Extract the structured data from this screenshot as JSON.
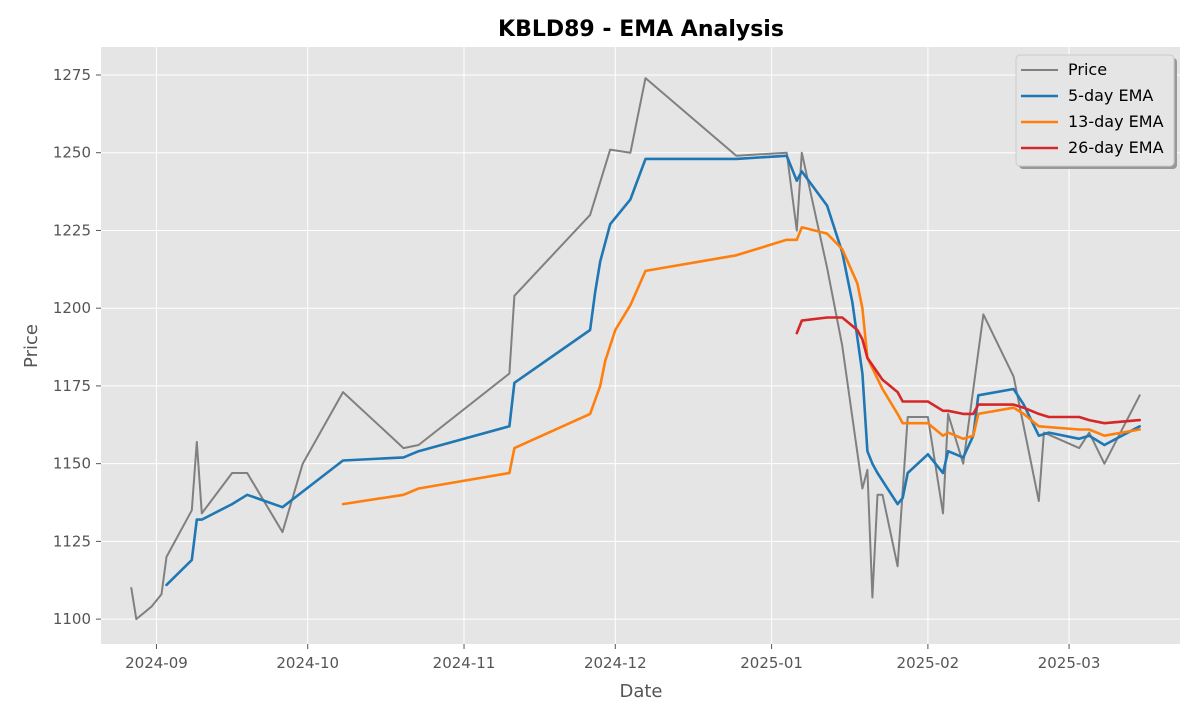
{
  "chart_data": {
    "type": "line",
    "title": "KBLD89 - EMA Analysis",
    "xlabel": "Date",
    "ylabel": "Price",
    "x_ticks": [
      {
        "date": "2024-09-01",
        "label": "2024-09"
      },
      {
        "date": "2024-10-01",
        "label": "2024-10"
      },
      {
        "date": "2024-11-01",
        "label": "2024-11"
      },
      {
        "date": "2024-12-01",
        "label": "2024-12"
      },
      {
        "date": "2025-01-01",
        "label": "2025-01"
      },
      {
        "date": "2025-02-01",
        "label": "2025-02"
      },
      {
        "date": "2025-03-01",
        "label": "2025-03"
      }
    ],
    "y_ticks": [
      1100,
      1125,
      1150,
      1175,
      1200,
      1225,
      1250,
      1275
    ],
    "xlim": [
      "2024-08-21",
      "2025-03-23"
    ],
    "ylim": [
      1092,
      1284
    ],
    "grid": true,
    "legend_position": "top-right",
    "colors": {
      "price": "#808080",
      "ema5": "#1f77b4",
      "ema13": "#ff7f0e",
      "ema26": "#d62728",
      "plot_bg": "#e5e5e5",
      "grid": "#ffffff"
    },
    "series": [
      {
        "name": "Price",
        "key": "price",
        "points": [
          [
            "2024-08-27",
            1110
          ],
          [
            "2024-08-28",
            1100
          ],
          [
            "2024-08-31",
            1104
          ],
          [
            "2024-09-02",
            1108
          ],
          [
            "2024-09-03",
            1120
          ],
          [
            "2024-09-08",
            1135
          ],
          [
            "2024-09-09",
            1157
          ],
          [
            "2024-09-10",
            1134
          ],
          [
            "2024-09-16",
            1147
          ],
          [
            "2024-09-19",
            1147
          ],
          [
            "2024-09-26",
            1128
          ],
          [
            "2024-09-30",
            1150
          ],
          [
            "2024-10-08",
            1173
          ],
          [
            "2024-10-20",
            1155
          ],
          [
            "2024-10-23",
            1156
          ],
          [
            "2024-11-10",
            1179
          ],
          [
            "2024-11-11",
            1204
          ],
          [
            "2024-11-26",
            1230
          ],
          [
            "2024-11-30",
            1251
          ],
          [
            "2024-12-04",
            1250
          ],
          [
            "2024-12-07",
            1274
          ],
          [
            "2024-12-25",
            1249
          ],
          [
            "2025-01-04",
            1250
          ],
          [
            "2025-01-06",
            1225
          ],
          [
            "2025-01-07",
            1250
          ],
          [
            "2025-01-12",
            1213
          ],
          [
            "2025-01-15",
            1188
          ],
          [
            "2025-01-19",
            1142
          ],
          [
            "2025-01-20",
            1148
          ],
          [
            "2025-01-21",
            1107
          ],
          [
            "2025-01-22",
            1140
          ],
          [
            "2025-01-23",
            1140
          ],
          [
            "2025-01-26",
            1117
          ],
          [
            "2025-01-28",
            1165
          ],
          [
            "2025-02-01",
            1165
          ],
          [
            "2025-02-04",
            1134
          ],
          [
            "2025-02-05",
            1166
          ],
          [
            "2025-02-08",
            1150
          ],
          [
            "2025-02-12",
            1198
          ],
          [
            "2025-02-18",
            1178
          ],
          [
            "2025-02-23",
            1138
          ],
          [
            "2025-02-24",
            1160
          ],
          [
            "2025-03-03",
            1155
          ],
          [
            "2025-03-05",
            1160
          ],
          [
            "2025-03-08",
            1150
          ],
          [
            "2025-03-15",
            1172
          ]
        ]
      },
      {
        "name": "5-day EMA",
        "key": "ema5",
        "points": [
          [
            "2024-09-03",
            1111
          ],
          [
            "2024-09-08",
            1119
          ],
          [
            "2024-09-09",
            1132
          ],
          [
            "2024-09-10",
            1132
          ],
          [
            "2024-09-16",
            1137
          ],
          [
            "2024-09-19",
            1140
          ],
          [
            "2024-09-26",
            1136
          ],
          [
            "2024-09-30",
            1141
          ],
          [
            "2024-10-08",
            1151
          ],
          [
            "2024-10-20",
            1152
          ],
          [
            "2024-10-23",
            1154
          ],
          [
            "2024-11-10",
            1162
          ],
          [
            "2024-11-11",
            1176
          ],
          [
            "2024-11-26",
            1193
          ],
          [
            "2024-11-27",
            1205
          ],
          [
            "2024-11-28",
            1215
          ],
          [
            "2024-11-30",
            1227
          ],
          [
            "2024-12-04",
            1235
          ],
          [
            "2024-12-07",
            1248
          ],
          [
            "2024-12-25",
            1248
          ],
          [
            "2025-01-04",
            1249
          ],
          [
            "2025-01-06",
            1241
          ],
          [
            "2025-01-07",
            1244
          ],
          [
            "2025-01-12",
            1233
          ],
          [
            "2025-01-15",
            1218
          ],
          [
            "2025-01-17",
            1202
          ],
          [
            "2025-01-19",
            1179
          ],
          [
            "2025-01-20",
            1154
          ],
          [
            "2025-01-21",
            1150
          ],
          [
            "2025-01-22",
            1147
          ],
          [
            "2025-01-26",
            1137
          ],
          [
            "2025-01-27",
            1139
          ],
          [
            "2025-01-28",
            1147
          ],
          [
            "2025-02-01",
            1153
          ],
          [
            "2025-02-04",
            1147
          ],
          [
            "2025-02-05",
            1154
          ],
          [
            "2025-02-08",
            1152
          ],
          [
            "2025-02-10",
            1159
          ],
          [
            "2025-02-11",
            1172
          ],
          [
            "2025-02-18",
            1174
          ],
          [
            "2025-02-20",
            1169
          ],
          [
            "2025-02-23",
            1159
          ],
          [
            "2025-02-25",
            1160
          ],
          [
            "2025-03-03",
            1158
          ],
          [
            "2025-03-05",
            1159
          ],
          [
            "2025-03-08",
            1156
          ],
          [
            "2025-03-15",
            1162
          ]
        ]
      },
      {
        "name": "13-day EMA",
        "key": "ema13",
        "points": [
          [
            "2024-10-08",
            1137
          ],
          [
            "2024-10-20",
            1140
          ],
          [
            "2024-10-23",
            1142
          ],
          [
            "2024-11-10",
            1147
          ],
          [
            "2024-11-11",
            1155
          ],
          [
            "2024-11-26",
            1166
          ],
          [
            "2024-11-28",
            1175
          ],
          [
            "2024-11-29",
            1183
          ],
          [
            "2024-12-01",
            1193
          ],
          [
            "2024-12-04",
            1201
          ],
          [
            "2024-12-07",
            1212
          ],
          [
            "2024-12-25",
            1217
          ],
          [
            "2025-01-04",
            1222
          ],
          [
            "2025-01-06",
            1222
          ],
          [
            "2025-01-07",
            1226
          ],
          [
            "2025-01-12",
            1224
          ],
          [
            "2025-01-15",
            1219
          ],
          [
            "2025-01-18",
            1208
          ],
          [
            "2025-01-19",
            1200
          ],
          [
            "2025-01-20",
            1184
          ],
          [
            "2025-01-23",
            1174
          ],
          [
            "2025-01-26",
            1166
          ],
          [
            "2025-01-27",
            1163
          ],
          [
            "2025-02-01",
            1163
          ],
          [
            "2025-02-04",
            1159
          ],
          [
            "2025-02-05",
            1160
          ],
          [
            "2025-02-08",
            1158
          ],
          [
            "2025-02-10",
            1159
          ],
          [
            "2025-02-11",
            1166
          ],
          [
            "2025-02-18",
            1168
          ],
          [
            "2025-02-20",
            1166
          ],
          [
            "2025-02-23",
            1162
          ],
          [
            "2025-03-03",
            1161
          ],
          [
            "2025-03-05",
            1161
          ],
          [
            "2025-03-08",
            1159
          ],
          [
            "2025-03-15",
            1161
          ]
        ]
      },
      {
        "name": "26-day EMA",
        "key": "ema26",
        "points": [
          [
            "2025-01-06",
            1192
          ],
          [
            "2025-01-07",
            1196
          ],
          [
            "2025-01-12",
            1197
          ],
          [
            "2025-01-15",
            1197
          ],
          [
            "2025-01-18",
            1193
          ],
          [
            "2025-01-19",
            1190
          ],
          [
            "2025-01-20",
            1184
          ],
          [
            "2025-01-23",
            1177
          ],
          [
            "2025-01-26",
            1173
          ],
          [
            "2025-01-27",
            1170
          ],
          [
            "2025-02-01",
            1170
          ],
          [
            "2025-02-04",
            1167
          ],
          [
            "2025-02-05",
            1167
          ],
          [
            "2025-02-08",
            1166
          ],
          [
            "2025-02-10",
            1166
          ],
          [
            "2025-02-11",
            1169
          ],
          [
            "2025-02-18",
            1169
          ],
          [
            "2025-02-20",
            1168
          ],
          [
            "2025-02-23",
            1166
          ],
          [
            "2025-02-25",
            1165
          ],
          [
            "2025-03-03",
            1165
          ],
          [
            "2025-03-05",
            1164
          ],
          [
            "2025-03-08",
            1163
          ],
          [
            "2025-03-15",
            1164
          ]
        ]
      }
    ]
  }
}
